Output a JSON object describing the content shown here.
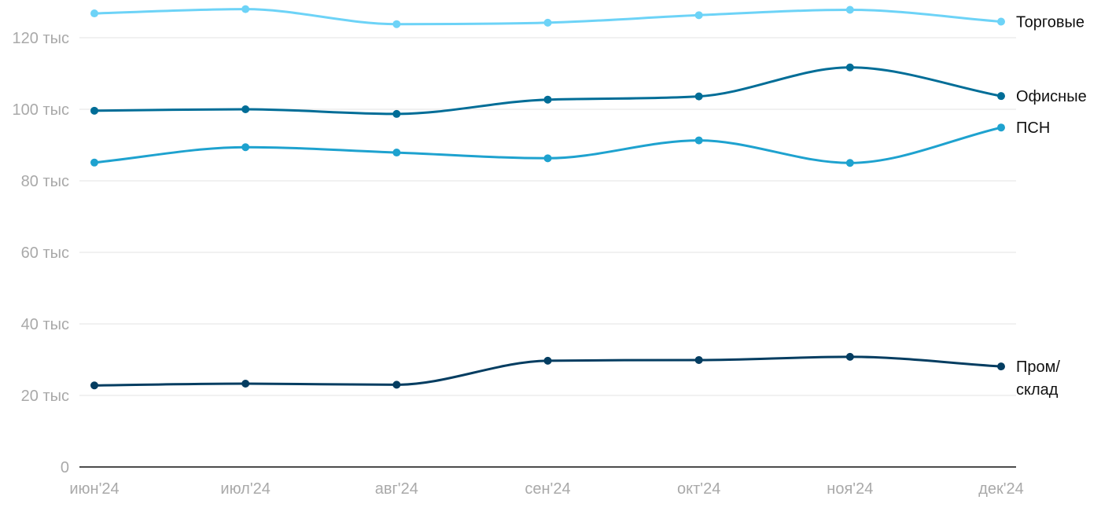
{
  "chart_data": {
    "type": "line",
    "categories": [
      "июн'24",
      "июл'24",
      "авг'24",
      "сен'24",
      "окт'24",
      "ноя'24",
      "дек'24"
    ],
    "ylim": [
      0,
      130000
    ],
    "yticks": [
      0,
      20000,
      40000,
      60000,
      80000,
      100000,
      120000
    ],
    "ytick_labels": [
      "0",
      "20 тыс",
      "40 тыс",
      "60 тыс",
      "80 тыс",
      "100 тыс",
      "120 тыс"
    ],
    "grid": true,
    "legend": "inline labels at right end of each line",
    "series": [
      {
        "name": "Торговые",
        "label_lines": [
          "Торговые"
        ],
        "color": "#6dd3f7",
        "values": [
          126800,
          128000,
          123800,
          124200,
          126300,
          127800,
          124500
        ]
      },
      {
        "name": "Офисные",
        "label_lines": [
          "Офисные"
        ],
        "color": "#006d97",
        "values": [
          99600,
          100000,
          98700,
          102700,
          103600,
          111700,
          103700
        ]
      },
      {
        "name": "ПСН",
        "label_lines": [
          "ПСН"
        ],
        "color": "#1ea2cf",
        "values": [
          85100,
          89400,
          87900,
          86300,
          91300,
          85000,
          94900
        ]
      },
      {
        "name": "Пром/склад",
        "label_lines": [
          "Пром/",
          "склад"
        ],
        "color": "#043d61",
        "values": [
          22800,
          23300,
          23000,
          29700,
          29900,
          30800,
          28100
        ]
      }
    ]
  }
}
